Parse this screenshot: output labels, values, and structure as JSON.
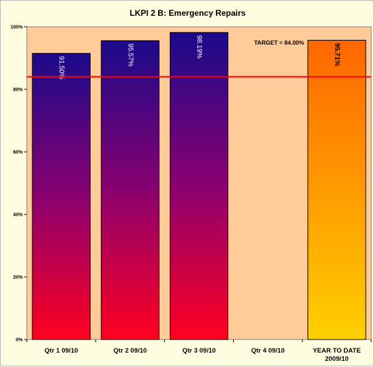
{
  "chart_data": {
    "type": "bar",
    "title": "LKPI 2 B:  Emergency Repairs",
    "categories": [
      [
        "Qtr 1 09/10"
      ],
      [
        "Qtr 2 09/10"
      ],
      [
        "Qtr 3 09/10"
      ],
      [
        "Qtr 4 09/10"
      ],
      [
        "YEAR TO DATE",
        "2009/10"
      ]
    ],
    "values": [
      91.5,
      95.57,
      98.19,
      null,
      95.71
    ],
    "data_labels": [
      "91.50%",
      "95.57%",
      "98.19%",
      "",
      "95.71%"
    ],
    "ylim": [
      0,
      100
    ],
    "yticks": [
      0,
      20,
      40,
      60,
      80,
      100
    ],
    "ytick_labels": [
      "0%",
      "20%",
      "40%",
      "60%",
      "80%",
      "100%"
    ],
    "xlabel": "",
    "ylabel": "",
    "grid": false,
    "target": {
      "value": 84.0,
      "label": "TARGET = 84.00%",
      "color": "#ff0000"
    },
    "colors": {
      "plot_background": "#ffcc99",
      "chart_background": "#fffde0",
      "quarter_gradient_top": "#1a0a8a",
      "quarter_gradient_bottom": "#ff0020",
      "ytd_gradient_top": "#ff6600",
      "ytd_gradient_bottom": "#ffd000",
      "quarter_label_color": "#ffffff",
      "ytd_label_color": "#000000"
    }
  }
}
